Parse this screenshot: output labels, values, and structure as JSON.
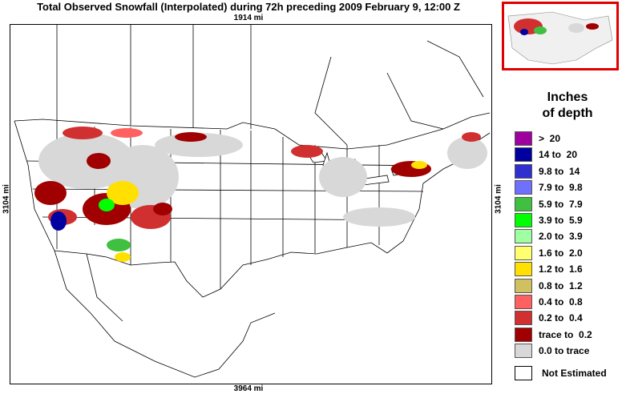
{
  "title": "Total Observed Snowfall (Interpolated) during 72h preceding 2009 February 9, 12:00 Z",
  "dimensions": {
    "top": "1914 mi",
    "bottom": "3964 mi",
    "left": "3104 mi",
    "right": "3104 mi"
  },
  "legend": {
    "title_line1": "Inches",
    "title_line2": "of depth",
    "entries": [
      {
        "label": ">  20",
        "color": "#a000a0"
      },
      {
        "label": "14 to  20",
        "color": "#0000a0"
      },
      {
        "label": "9.8 to  14",
        "color": "#3030d0"
      },
      {
        "label": "7.9 to  9.8",
        "color": "#7070ff"
      },
      {
        "label": "5.9 to  7.9",
        "color": "#40c040"
      },
      {
        "label": "3.9 to  5.9",
        "color": "#00ff00"
      },
      {
        "label": "2.0 to  3.9",
        "color": "#a0ffa0"
      },
      {
        "label": "1.6 to  2.0",
        "color": "#ffff70"
      },
      {
        "label": "1.2 to  1.6",
        "color": "#ffe000"
      },
      {
        "label": "0.8 to  1.2",
        "color": "#d0c060"
      },
      {
        "label": "0.4 to  0.8",
        "color": "#ff6060"
      },
      {
        "label": "0.2 to  0.4",
        "color": "#d03030"
      },
      {
        "label": "trace to  0.2",
        "color": "#a00000"
      },
      {
        "label": "0.0 to trace",
        "color": "#d8d8d8"
      }
    ],
    "not_estimated": "Not Estimated"
  }
}
